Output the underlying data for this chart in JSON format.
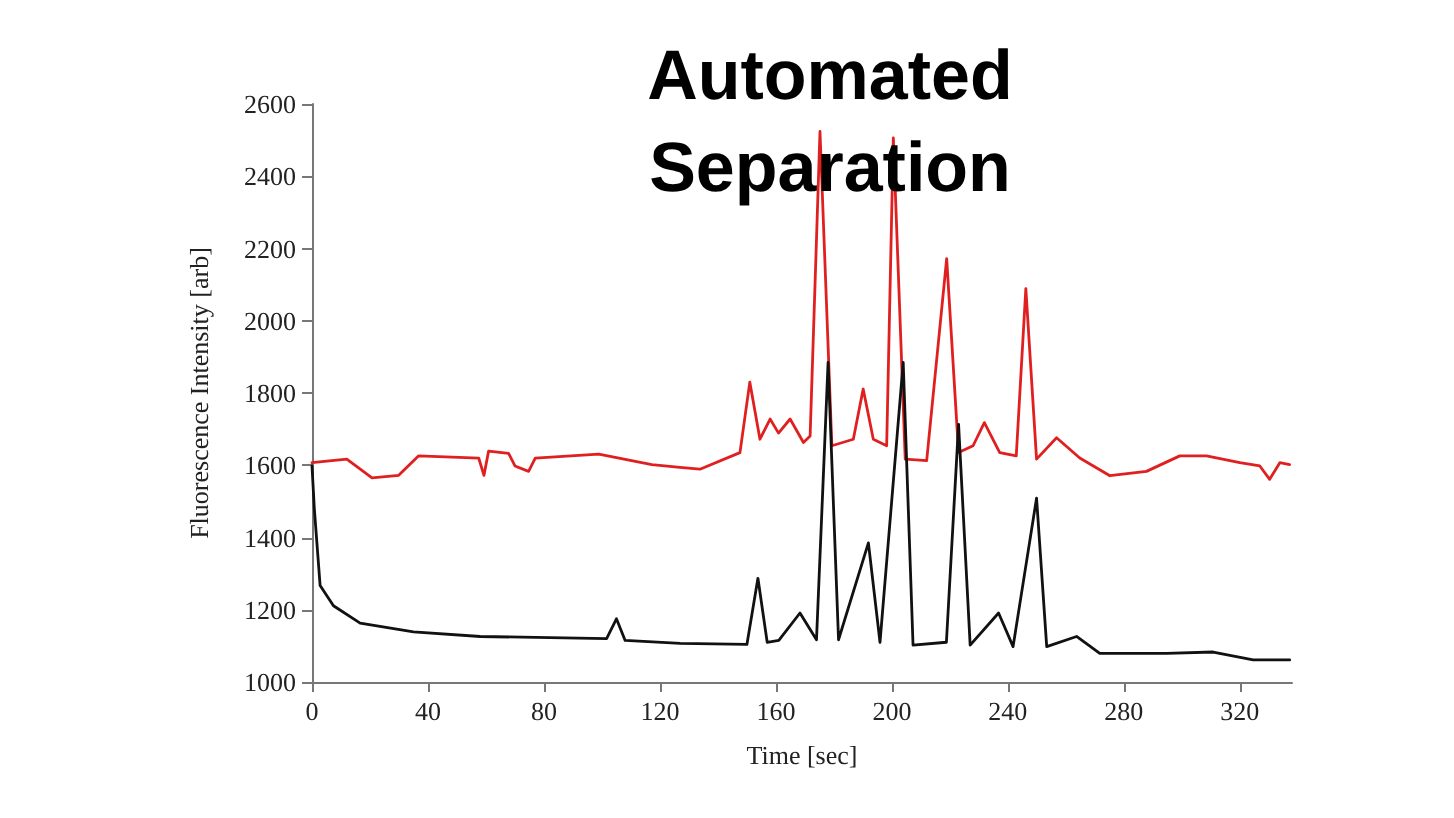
{
  "chart_data": {
    "type": "line",
    "title": "Automated\nSeparation",
    "xlabel": "Time [sec]",
    "ylabel": "Fluorescence Intensity [arb]",
    "xlim": [
      0,
      338
    ],
    "xticks": [
      0,
      40,
      80,
      120,
      160,
      200,
      240,
      280,
      320
    ],
    "ylim": [
      1000,
      2600
    ],
    "yticks": [
      1000,
      1200,
      1400,
      1600,
      1800,
      2000,
      2200,
      2400,
      2600
    ],
    "grid": false,
    "marker": "none",
    "line_style": "solid",
    "series": [
      {
        "color": "#e02020",
        "x": [
          0,
          12,
          20.7,
          29.9,
          36.8,
          57.5,
          59.3,
          60.9,
          67.8,
          70,
          74.7,
          77,
          98.9,
          117.2,
          126.9,
          133.8,
          147.6,
          151,
          154.5,
          158,
          160.9,
          164.9,
          169.5,
          171.8,
          175.2,
          179.3,
          186.7,
          190.1,
          193.6,
          198.2,
          200.5,
          204.6,
          212,
          218.9,
          223,
          228,
          231.9,
          237.2,
          242.9,
          246.2,
          249.9,
          256.8,
          264.8,
          275.2,
          287.8,
          299.3,
          308.5,
          320,
          326.9,
          330.3,
          333.8,
          337.2
        ],
        "values": [
          1607,
          1617,
          1565,
          1572,
          1626,
          1620,
          1572,
          1639,
          1633,
          1598,
          1583,
          1620,
          1631,
          1602,
          1594,
          1589,
          1635,
          1830,
          1672,
          1728,
          1689,
          1728,
          1663,
          1681,
          2524,
          1654,
          1672,
          1811,
          1672,
          1654,
          2506,
          1617,
          1613,
          2172,
          1635,
          1654,
          1718,
          1635,
          1626,
          2089,
          1617,
          1676,
          1620,
          1571,
          1583,
          1626,
          1626,
          1607,
          1598,
          1561,
          1607,
          1602
        ]
      },
      {
        "color": "#111111",
        "x": [
          0,
          0.8,
          2.8,
          7.4,
          16.6,
          35,
          58,
          101.6,
          105,
          108,
          127,
          150,
          153.8,
          157,
          161,
          168.3,
          174,
          178,
          181.6,
          191.9,
          195.9,
          203.9,
          207.3,
          218.8,
          223,
          227,
          236.8,
          241.8,
          249.9,
          253.4,
          263.7,
          271.7,
          294.7,
          310.8,
          324.6,
          337.2
        ],
        "values": [
          1598,
          1480,
          1267,
          1211,
          1163,
          1139,
          1126,
          1120,
          1175,
          1115,
          1107,
          1104,
          1287,
          1110,
          1115,
          1191,
          1117,
          1885,
          1117,
          1385,
          1110,
          1885,
          1102,
          1110,
          1713,
          1102,
          1191,
          1098,
          1509,
          1098,
          1126,
          1079,
          1079,
          1083,
          1061,
          1061
        ]
      }
    ]
  }
}
